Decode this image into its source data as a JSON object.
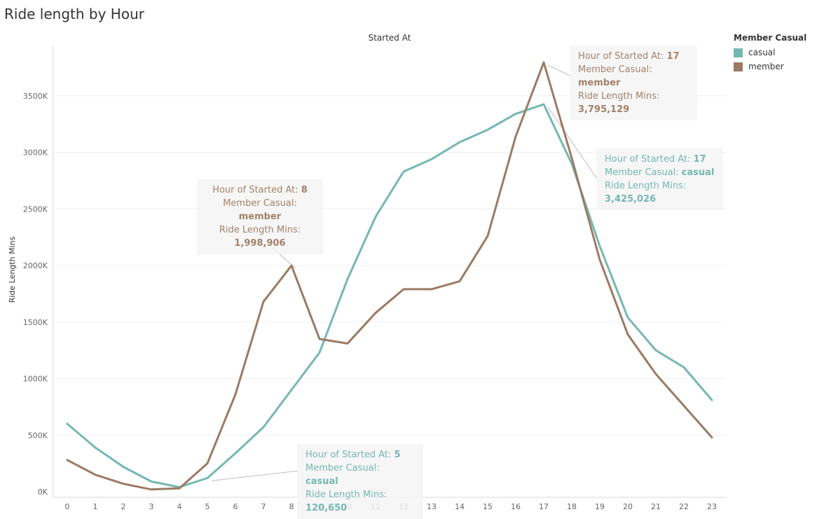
{
  "chart_data": {
    "type": "line",
    "title": "Ride length by Hour",
    "x_axis_title": "Started At",
    "ylabel": "Ride Length Mins",
    "legend_title": "Member Casual",
    "legend_position": "top-right",
    "x": [
      0,
      1,
      2,
      3,
      4,
      5,
      6,
      7,
      8,
      9,
      10,
      11,
      12,
      13,
      14,
      15,
      16,
      17,
      18,
      19,
      20,
      21,
      22,
      23
    ],
    "ylim": [
      0,
      3900000
    ],
    "y_ticks": [
      0,
      500000,
      1000000,
      1500000,
      2000000,
      2500000,
      3000000,
      3500000
    ],
    "y_tick_labels": [
      "0K",
      "500K",
      "1000K",
      "1500K",
      "2000K",
      "2500K",
      "3000K",
      "3500K"
    ],
    "grid": true,
    "series": [
      {
        "name": "casual",
        "color": "#76b7b2",
        "values": [
          600000,
          390000,
          220000,
          90000,
          40000,
          120650,
          340000,
          570000,
          900000,
          1230000,
          1880000,
          2430000,
          2830000,
          2940000,
          3090000,
          3200000,
          3340000,
          3425026,
          2900000,
          2170000,
          1540000,
          1250000,
          1100000,
          810000
        ]
      },
      {
        "name": "member",
        "color": "#9c7a63",
        "values": [
          280000,
          150000,
          70000,
          20000,
          30000,
          250000,
          860000,
          1680000,
          1998906,
          1350000,
          1310000,
          1580000,
          1790000,
          1790000,
          1860000,
          2260000,
          3140000,
          3795129,
          2950000,
          2050000,
          1390000,
          1040000,
          760000,
          480000
        ]
      }
    ],
    "annotations": [
      {
        "id": "a-member-8",
        "series": "member",
        "x": 8,
        "l1": "Hour of Started At: ",
        "v1": "8",
        "l2": "Member Casual: ",
        "v2": "member",
        "l3": "Ride Length Mins:",
        "v3": "1,998,906"
      },
      {
        "id": "a-member-17",
        "series": "member",
        "x": 17,
        "l1": "Hour of Started At: ",
        "v1": "17",
        "l2": "Member Casual: ",
        "v2": "member",
        "l3": "Ride Length Mins:",
        "v3": "3,795,129"
      },
      {
        "id": "a-casual-17",
        "series": "casual",
        "x": 17,
        "l1": "Hour of Started At: ",
        "v1": "17",
        "l2": "Member Casual: ",
        "v2": "casual",
        "l3": "Ride Length Mins:",
        "v3": "3,425,026"
      },
      {
        "id": "a-casual-5",
        "series": "casual",
        "x": 5,
        "l1": "Hour of Started At: ",
        "v1": "5",
        "l2": "Member Casual: ",
        "v2": "casual",
        "l3": "Ride Length Mins: ",
        "v3": "120,650"
      }
    ]
  }
}
